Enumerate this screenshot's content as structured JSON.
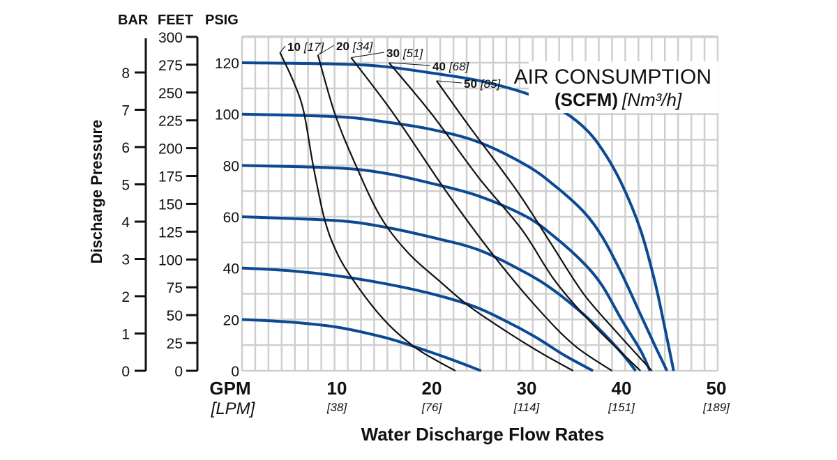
{
  "chart_data": {
    "type": "line",
    "title": "",
    "xlabel": "Water Discharge Flow Rates",
    "ylabel": "Discharge Pressure",
    "x_unit_label": "GPM",
    "x_alt_unit_label": "[LPM]",
    "xlim": [
      0,
      50
    ],
    "ylim": [
      0,
      130
    ],
    "grid": true,
    "x_ticks": [
      {
        "gpm": 10,
        "label": "10",
        "lpm_label": "[38]"
      },
      {
        "gpm": 20,
        "label": "20",
        "lpm_label": "[76]"
      },
      {
        "gpm": 30,
        "label": "30",
        "lpm_label": "[114]"
      },
      {
        "gpm": 40,
        "label": "40",
        "lpm_label": "[151]"
      },
      {
        "gpm": 50,
        "label": "50",
        "lpm_label": "[189]"
      }
    ],
    "y_axes": {
      "bar": {
        "header": "BAR",
        "ticks": [
          "0",
          "1",
          "2",
          "3",
          "4",
          "5",
          "6",
          "7",
          "8"
        ]
      },
      "feet": {
        "header": "FEET",
        "ticks": [
          "0",
          "25",
          "50",
          "75",
          "100",
          "125",
          "150",
          "175",
          "200",
          "225",
          "250",
          "275",
          "300"
        ]
      },
      "psig": {
        "header": "PSIG",
        "ticks": [
          "0",
          "20",
          "40",
          "60",
          "80",
          "100",
          "120"
        ]
      }
    },
    "legend": {
      "title": "AIR CONSUMPTION",
      "unit_bold": "(SCFM)",
      "unit_alt": "[Nm³/h]",
      "placement": "top-right"
    },
    "series": [
      {
        "name": "120 psig supply",
        "kind": "pressure",
        "points": [
          [
            0,
            120
          ],
          [
            10,
            119.5
          ],
          [
            15,
            118.5
          ],
          [
            20,
            116
          ],
          [
            25,
            113
          ],
          [
            30,
            108
          ],
          [
            33,
            103
          ],
          [
            36,
            95
          ],
          [
            38,
            86
          ],
          [
            40,
            73
          ],
          [
            42,
            55
          ],
          [
            43.5,
            35
          ],
          [
            44.5,
            18
          ],
          [
            45.5,
            0
          ]
        ]
      },
      {
        "name": "100 psig supply",
        "kind": "pressure",
        "points": [
          [
            0,
            100
          ],
          [
            10,
            99
          ],
          [
            15,
            97
          ],
          [
            20,
            94
          ],
          [
            25,
            89
          ],
          [
            30,
            80
          ],
          [
            33,
            72
          ],
          [
            36,
            62
          ],
          [
            38,
            52
          ],
          [
            40,
            38
          ],
          [
            42,
            22
          ],
          [
            43.5,
            10
          ],
          [
            44.8,
            0
          ]
        ]
      },
      {
        "name": "80 psig supply",
        "kind": "pressure",
        "points": [
          [
            0,
            80
          ],
          [
            10,
            79
          ],
          [
            15,
            77
          ],
          [
            20,
            73
          ],
          [
            25,
            68
          ],
          [
            30,
            60
          ],
          [
            33,
            52
          ],
          [
            36,
            42
          ],
          [
            38,
            33
          ],
          [
            40,
            20
          ],
          [
            42,
            8
          ],
          [
            43,
            0
          ]
        ]
      },
      {
        "name": "60 psig supply",
        "kind": "pressure",
        "points": [
          [
            0,
            60
          ],
          [
            10,
            58.5
          ],
          [
            15,
            56
          ],
          [
            20,
            52
          ],
          [
            25,
            47
          ],
          [
            30,
            38
          ],
          [
            33,
            31
          ],
          [
            36,
            22
          ],
          [
            38,
            15
          ],
          [
            40,
            7
          ],
          [
            41.5,
            0
          ]
        ]
      },
      {
        "name": "40 psig supply",
        "kind": "pressure",
        "points": [
          [
            0,
            40
          ],
          [
            5,
            39
          ],
          [
            10,
            37
          ],
          [
            15,
            34
          ],
          [
            20,
            30
          ],
          [
            24.5,
            25
          ],
          [
            28,
            19
          ],
          [
            31,
            13
          ],
          [
            34,
            6
          ],
          [
            37,
            0
          ]
        ]
      },
      {
        "name": "20 psig supply",
        "kind": "pressure",
        "points": [
          [
            0,
            20
          ],
          [
            5,
            19
          ],
          [
            10,
            17
          ],
          [
            15,
            13
          ],
          [
            18.5,
            9
          ],
          [
            22,
            4.5
          ],
          [
            25.2,
            0
          ]
        ]
      },
      {
        "name": "10",
        "alt": "[17]",
        "kind": "air",
        "points": [
          [
            4,
            124
          ],
          [
            5.5,
            112
          ],
          [
            6.5,
            101
          ],
          [
            7.5,
            80
          ],
          [
            8.7,
            59
          ],
          [
            10,
            46
          ],
          [
            11.6,
            36
          ],
          [
            14,
            24
          ],
          [
            16,
            16
          ],
          [
            18.4,
            8.7
          ],
          [
            20.5,
            4
          ],
          [
            22.5,
            0
          ]
        ]
      },
      {
        "name": "20",
        "alt": "[34]",
        "kind": "air",
        "points": [
          [
            8,
            123
          ],
          [
            9.8,
            100
          ],
          [
            12,
            80
          ],
          [
            14.6,
            60
          ],
          [
            17.5,
            46
          ],
          [
            20.8,
            35
          ],
          [
            24,
            25
          ],
          [
            28,
            15
          ],
          [
            31.5,
            7
          ],
          [
            34.9,
            0
          ]
        ]
      },
      {
        "name": "30",
        "alt": "[51]",
        "kind": "air",
        "points": [
          [
            11.5,
            122
          ],
          [
            16,
            100
          ],
          [
            21.5,
            70
          ],
          [
            26.5,
            45
          ],
          [
            31,
            25
          ],
          [
            35,
            10
          ],
          [
            39,
            0
          ]
        ]
      },
      {
        "name": "40",
        "alt": "[68]",
        "kind": "air",
        "points": [
          [
            15.5,
            120
          ],
          [
            20,
            100
          ],
          [
            25,
            75
          ],
          [
            29.5,
            55
          ],
          [
            33,
            35
          ],
          [
            37,
            18
          ],
          [
            42,
            0
          ]
        ]
      },
      {
        "name": "50",
        "alt": "[85]",
        "kind": "air",
        "points": [
          [
            20.5,
            113
          ],
          [
            24,
            95
          ],
          [
            29,
            70
          ],
          [
            32.5,
            50
          ],
          [
            36,
            30
          ],
          [
            39.5,
            15
          ],
          [
            43.2,
            0
          ]
        ]
      }
    ],
    "colors": {
      "pressure": "#0b4a93",
      "air": "#111111",
      "grid": "#cfcfcf"
    }
  }
}
